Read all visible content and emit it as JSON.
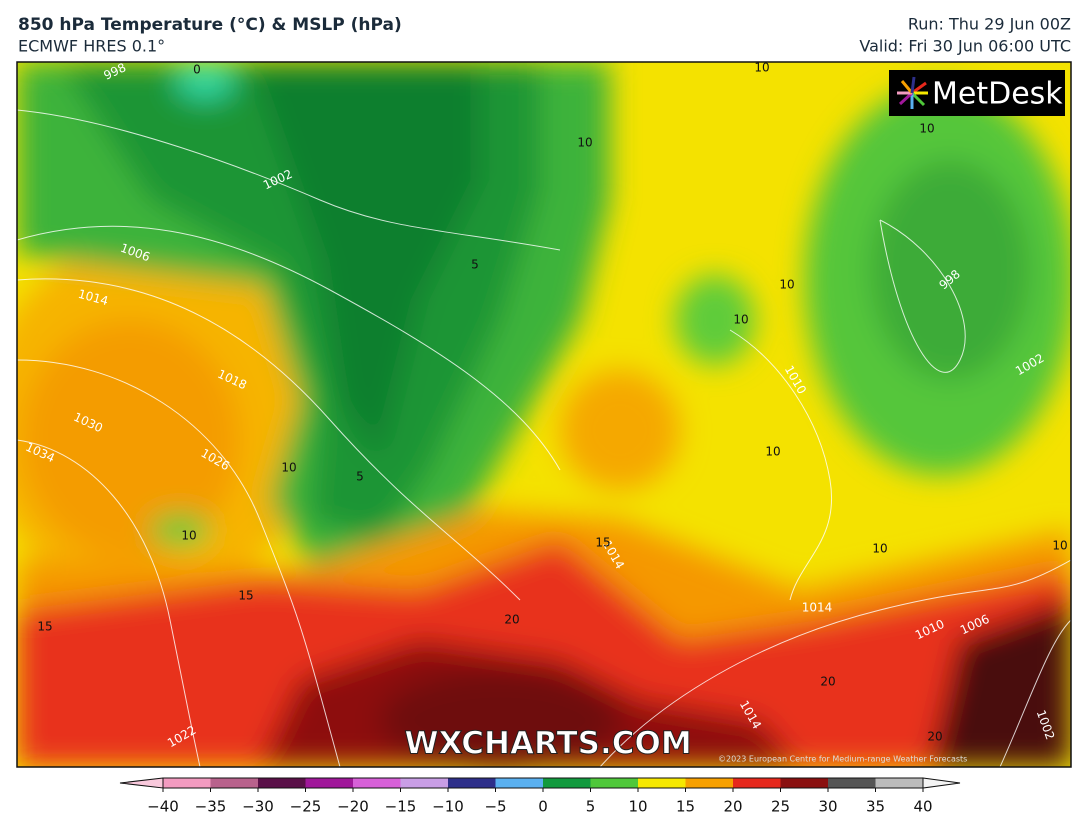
{
  "header": {
    "title": "850 hPa Temperature (°C) & MSLP (hPa)",
    "subtitle": "ECMWF HRES 0.1°",
    "run": "Run: Thu 29 Jun 00Z",
    "valid": "Valid: Fri 30 Jun 06:00 UTC"
  },
  "map": {
    "logo": "MetDesk",
    "watermark": "WXCHARTS.COM",
    "copyright": "©2023 European Centre for Medium-range Weather Forecasts",
    "isobar_labels": [
      "998",
      "1002",
      "1006",
      "1014",
      "1018",
      "1030",
      "1034",
      "1026",
      "1014",
      "1014",
      "1010",
      "1006",
      "1010",
      "998",
      "1002",
      "1014",
      "1022",
      "1002"
    ],
    "isotherm_labels": [
      "0",
      "10",
      "10",
      "10",
      "5",
      "10",
      "10",
      "10",
      "10",
      "5",
      "10",
      "15",
      "10",
      "15",
      "15",
      "20",
      "20",
      "20",
      "10"
    ]
  },
  "colorbar": {
    "ticks": [
      {
        "value": -40,
        "label": "−40"
      },
      {
        "value": -35,
        "label": "−35"
      },
      {
        "value": -30,
        "label": "−30"
      },
      {
        "value": -25,
        "label": "−25"
      },
      {
        "value": -20,
        "label": "−20"
      },
      {
        "value": -15,
        "label": "−15"
      },
      {
        "value": -10,
        "label": "−10"
      },
      {
        "value": -5,
        "label": "−5"
      },
      0,
      5,
      10,
      15,
      20,
      25,
      30,
      35,
      40
    ],
    "colors": [
      "#f29bc0",
      "#b8628c",
      "#5a1048",
      "#a0179a",
      "#d760d8",
      "#c99ee6",
      "#2e2f8a",
      "#5ab0f0",
      "#129a3e",
      "#4fc83a",
      "#f6e800",
      "#f7a000",
      "#e6281c",
      "#8a1010",
      "#555555",
      "#bbbbbb"
    ]
  }
}
